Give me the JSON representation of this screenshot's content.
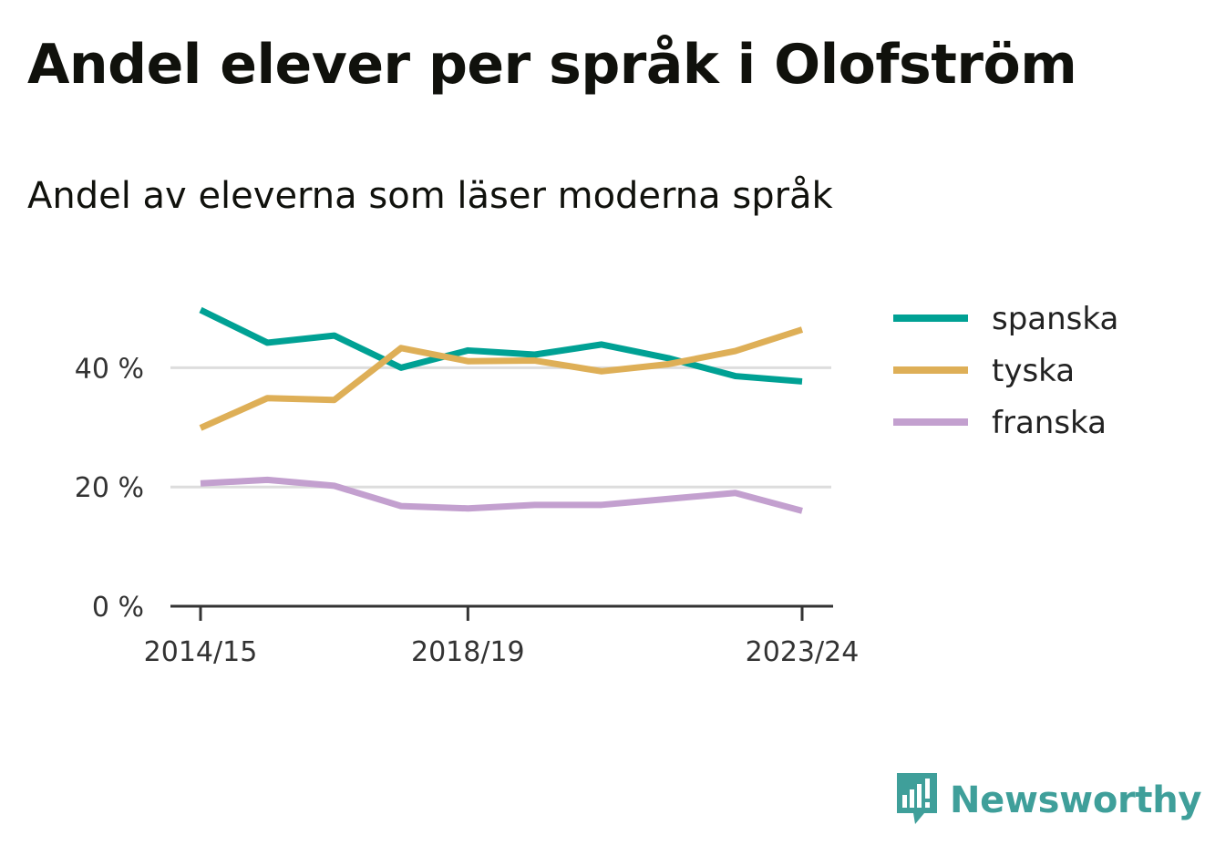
{
  "header": {
    "title": "Andel elever per språk i Olofström",
    "subtitle": "Andel av eleverna som läser moderna språk"
  },
  "brand": {
    "name": "Newsworthy",
    "color": "#3f9f9a",
    "icon": "newsworthy-logo-icon"
  },
  "chart_data": {
    "type": "line",
    "title": "Andel elever per språk i Olofström",
    "subtitle": "Andel av eleverna som läser moderna språk",
    "x": [
      "2014/15",
      "2015/16",
      "2016/17",
      "2017/18",
      "2018/19",
      "2019/20",
      "2020/21",
      "2021/22",
      "2022/23",
      "2023/24"
    ],
    "x_ticks_shown": [
      "2014/15",
      "2018/19",
      "2023/24"
    ],
    "y_ticks": [
      0,
      20,
      40
    ],
    "y_tick_labels": [
      "0 %",
      "20 %",
      "40 %"
    ],
    "ylim": [
      0,
      50
    ],
    "grid": true,
    "legend_position": "right",
    "series": [
      {
        "name": "spanska",
        "color": "#00a194",
        "values": [
          49.7,
          44.2,
          45.4,
          40.0,
          42.9,
          42.2,
          43.9,
          41.6,
          38.6,
          37.7
        ]
      },
      {
        "name": "tyska",
        "color": "#deaf57",
        "values": [
          29.9,
          34.9,
          34.6,
          43.3,
          41.1,
          41.2,
          39.4,
          40.6,
          42.8,
          46.4
        ]
      },
      {
        "name": "franska",
        "color": "#c3a0cf",
        "values": [
          20.6,
          21.2,
          20.2,
          16.8,
          16.4,
          17.0,
          17.0,
          18.0,
          19.0,
          16.0
        ]
      }
    ]
  }
}
